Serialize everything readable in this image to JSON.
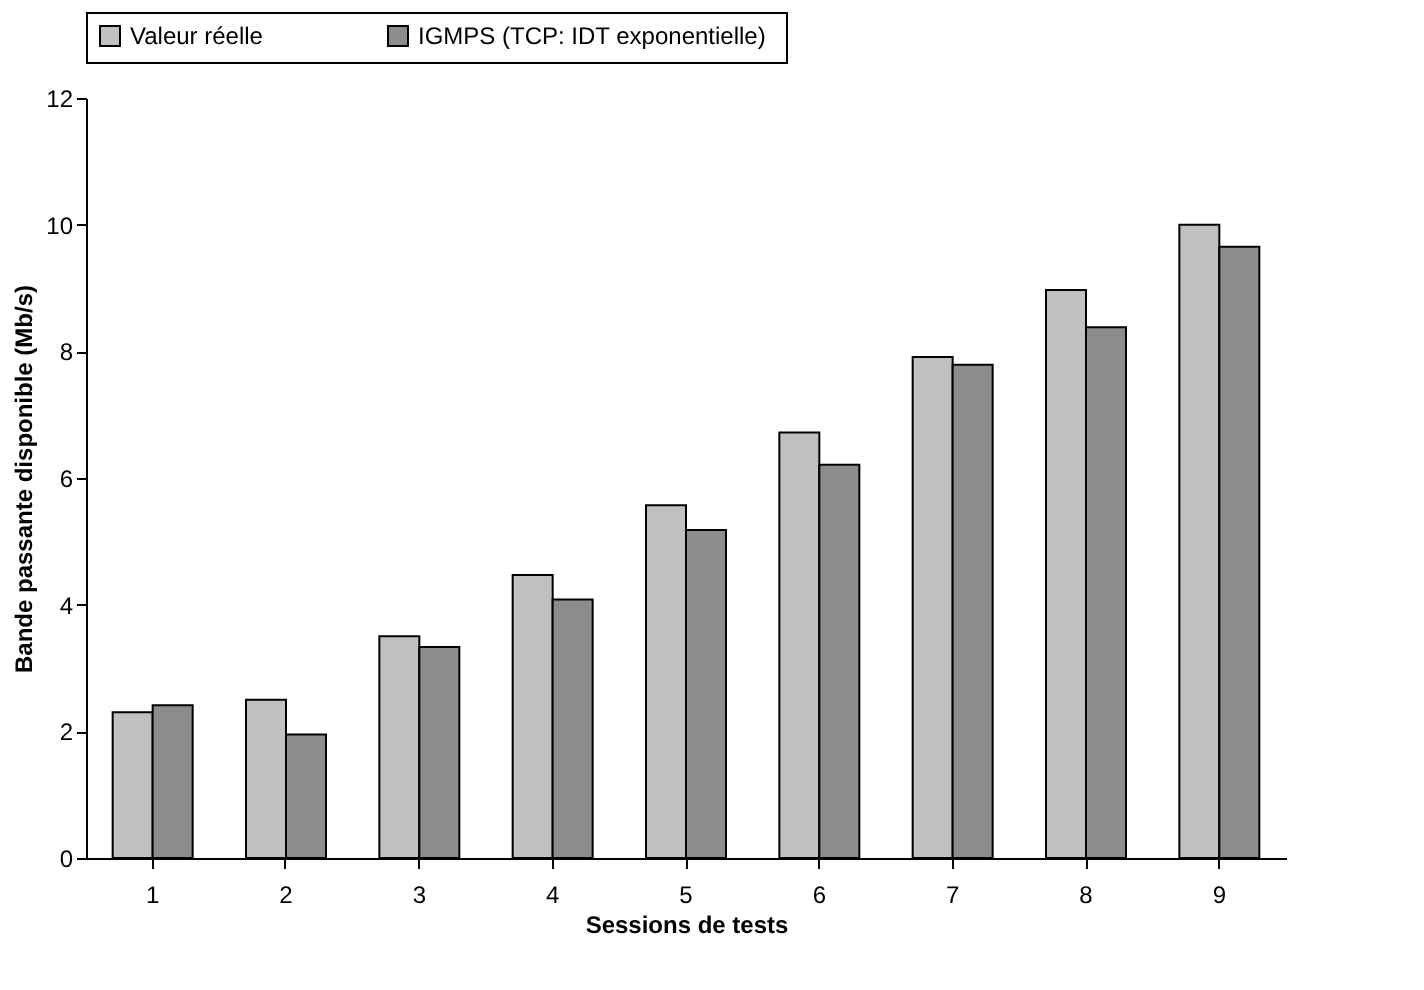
{
  "chart_data": {
    "type": "bar",
    "xlabel": "Sessions de tests",
    "ylabel": "Bande passante disponible (Mb/s)",
    "categories": [
      "1",
      "2",
      "3",
      "4",
      "5",
      "6",
      "7",
      "8",
      "9"
    ],
    "series": [
      {
        "name": "Valeur réelle",
        "color": "#c0c0c0",
        "values": [
          2.3,
          2.5,
          3.5,
          4.47,
          5.57,
          6.72,
          7.91,
          8.97,
          10.0
        ]
      },
      {
        "name": "IGMPS (TCP:  IDT exponentielle)",
        "color": "#8c8c8c",
        "values": [
          2.41,
          1.95,
          3.33,
          4.08,
          5.18,
          6.21,
          7.79,
          8.38,
          9.65
        ]
      }
    ],
    "ylim": [
      0,
      12
    ],
    "yticks": [
      0,
      2,
      4,
      6,
      8,
      10,
      12
    ],
    "grid": false,
    "legend": "top"
  }
}
